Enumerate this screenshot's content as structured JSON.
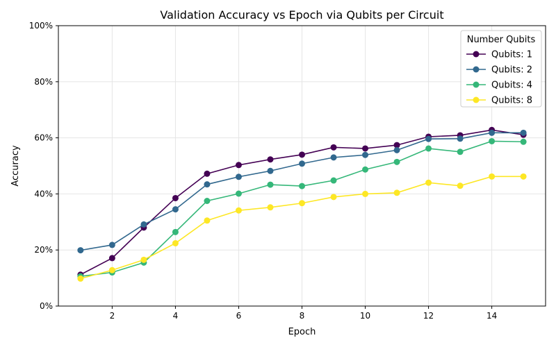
{
  "chart_data": {
    "type": "line",
    "title": "Validation Accuracy vs Epoch via Qubits per Circuit",
    "xlabel": "Epoch",
    "ylabel": "Accuracy",
    "x": [
      1,
      2,
      3,
      4,
      5,
      6,
      7,
      8,
      9,
      10,
      11,
      12,
      13,
      14,
      15
    ],
    "xlim": [
      0.3,
      15.7
    ],
    "ylim": [
      0,
      1
    ],
    "xticks": [
      2,
      4,
      6,
      8,
      10,
      12,
      14
    ],
    "yticks": [
      0,
      0.2,
      0.4,
      0.6,
      0.8,
      1.0
    ],
    "ytick_labels": [
      "0%",
      "20%",
      "40%",
      "60%",
      "80%",
      "100%"
    ],
    "grid": true,
    "legend": {
      "title": "Number Qubits",
      "position": "top-right"
    },
    "series": [
      {
        "name": "Qubits: 1",
        "color": "#440154",
        "values": [
          0.112,
          0.171,
          0.28,
          0.385,
          0.472,
          0.503,
          0.523,
          0.54,
          0.566,
          0.562,
          0.574,
          0.604,
          0.609,
          0.628,
          0.611
        ]
      },
      {
        "name": "Qubits: 2",
        "color": "#31688e",
        "values": [
          0.199,
          0.218,
          0.291,
          0.345,
          0.434,
          0.461,
          0.482,
          0.508,
          0.53,
          0.539,
          0.556,
          0.596,
          0.597,
          0.618,
          0.618
        ]
      },
      {
        "name": "Qubits: 4",
        "color": "#35b779",
        "values": [
          0.106,
          0.12,
          0.155,
          0.264,
          0.375,
          0.401,
          0.433,
          0.428,
          0.448,
          0.487,
          0.514,
          0.562,
          0.55,
          0.588,
          0.586
        ]
      },
      {
        "name": "Qubits: 8",
        "color": "#fde725",
        "values": [
          0.098,
          0.128,
          0.165,
          0.224,
          0.305,
          0.341,
          0.352,
          0.367,
          0.389,
          0.4,
          0.404,
          0.44,
          0.429,
          0.462,
          0.462
        ]
      }
    ]
  }
}
